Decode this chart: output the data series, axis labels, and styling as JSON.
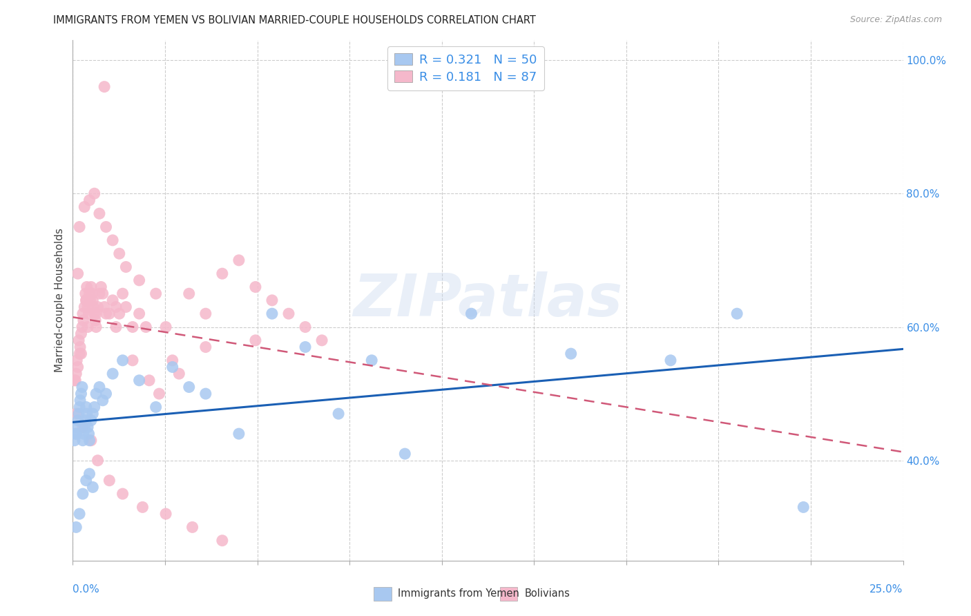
{
  "title": "IMMIGRANTS FROM YEMEN VS BOLIVIAN MARRIED-COUPLE HOUSEHOLDS CORRELATION CHART",
  "source": "Source: ZipAtlas.com",
  "ylabel": "Married-couple Households",
  "color_blue": "#a8c8f0",
  "color_pink": "#f5b8cb",
  "color_blue_line": "#1a5fb4",
  "color_pink_line": "#d05878",
  "color_legend_text": "#3a8ee6",
  "watermark": "ZIPatlas",
  "xmin": 0.0,
  "xmax": 25.0,
  "ymin": 25.0,
  "ymax": 103.0,
  "legend_label1": "Immigrants from Yemen",
  "legend_label2": "Bolivians",
  "blue_x": [
    0.05,
    0.08,
    0.1,
    0.12,
    0.15,
    0.18,
    0.2,
    0.22,
    0.25,
    0.28,
    0.3,
    0.32,
    0.35,
    0.38,
    0.4,
    0.42,
    0.45,
    0.48,
    0.5,
    0.55,
    0.6,
    0.65,
    0.7,
    0.8,
    0.9,
    1.0,
    1.2,
    1.5,
    2.0,
    2.5,
    3.0,
    3.5,
    4.0,
    5.0,
    6.0,
    7.0,
    8.0,
    9.0,
    10.0,
    12.0,
    15.0,
    18.0,
    20.0,
    22.0,
    0.1,
    0.2,
    0.3,
    0.4,
    0.5,
    0.6
  ],
  "blue_y": [
    43,
    44,
    45,
    44,
    46,
    47,
    48,
    49,
    50,
    51,
    43,
    44,
    45,
    46,
    48,
    47,
    45,
    44,
    43,
    46,
    47,
    48,
    50,
    51,
    49,
    50,
    53,
    55,
    52,
    48,
    54,
    51,
    50,
    44,
    62,
    57,
    47,
    55,
    41,
    62,
    56,
    55,
    62,
    33,
    30,
    32,
    35,
    37,
    38,
    36
  ],
  "pink_x": [
    0.05,
    0.08,
    0.1,
    0.12,
    0.15,
    0.18,
    0.2,
    0.22,
    0.25,
    0.28,
    0.3,
    0.32,
    0.35,
    0.38,
    0.4,
    0.42,
    0.45,
    0.48,
    0.5,
    0.52,
    0.55,
    0.58,
    0.6,
    0.62,
    0.65,
    0.68,
    0.7,
    0.75,
    0.8,
    0.85,
    0.9,
    0.95,
    1.0,
    1.1,
    1.2,
    1.3,
    1.4,
    1.5,
    1.6,
    1.8,
    2.0,
    2.2,
    2.5,
    2.8,
    3.0,
    3.5,
    4.0,
    4.5,
    5.0,
    5.5,
    6.0,
    6.5,
    7.0,
    7.5,
    0.2,
    0.35,
    0.5,
    0.65,
    0.8,
    1.0,
    1.2,
    1.4,
    1.6,
    2.0,
    0.1,
    0.3,
    0.55,
    0.75,
    1.1,
    1.5,
    2.1,
    2.8,
    3.6,
    4.5,
    0.15,
    0.4,
    0.7,
    1.3,
    1.8,
    2.3,
    2.6,
    3.2,
    4.0,
    5.5,
    0.25,
    0.45,
    0.95
  ],
  "pink_y": [
    52,
    52,
    53,
    55,
    54,
    58,
    56,
    57,
    59,
    60,
    62,
    61,
    63,
    65,
    64,
    66,
    63,
    62,
    65,
    64,
    66,
    65,
    64,
    63,
    62,
    61,
    60,
    63,
    65,
    66,
    65,
    63,
    62,
    62,
    64,
    63,
    62,
    65,
    63,
    60,
    62,
    60,
    65,
    60,
    55,
    65,
    62,
    68,
    70,
    66,
    64,
    62,
    60,
    58,
    75,
    78,
    79,
    80,
    77,
    75,
    73,
    71,
    69,
    67,
    47,
    45,
    43,
    40,
    37,
    35,
    33,
    32,
    30,
    28,
    68,
    64,
    62,
    60,
    55,
    52,
    50,
    53,
    57,
    58,
    56,
    60,
    96
  ]
}
